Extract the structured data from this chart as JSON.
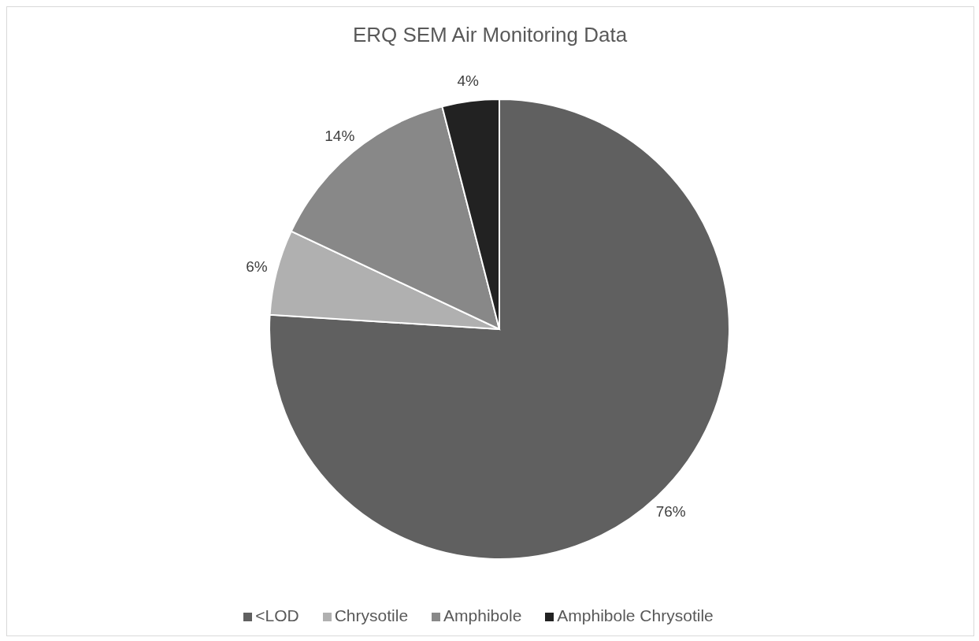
{
  "chart_data": {
    "type": "pie",
    "title": "ERQ SEM Air Monitoring Data",
    "categories": [
      "<LOD",
      "Chrysotile",
      "Amphibole",
      "Amphibole Chrysotile"
    ],
    "values": [
      76,
      6,
      14,
      4
    ],
    "value_labels": [
      "76%",
      "6%",
      "14%",
      "4%"
    ],
    "colors": [
      "#606060",
      "#b0b0b0",
      "#888888",
      "#222222"
    ],
    "legend": "bottom"
  }
}
